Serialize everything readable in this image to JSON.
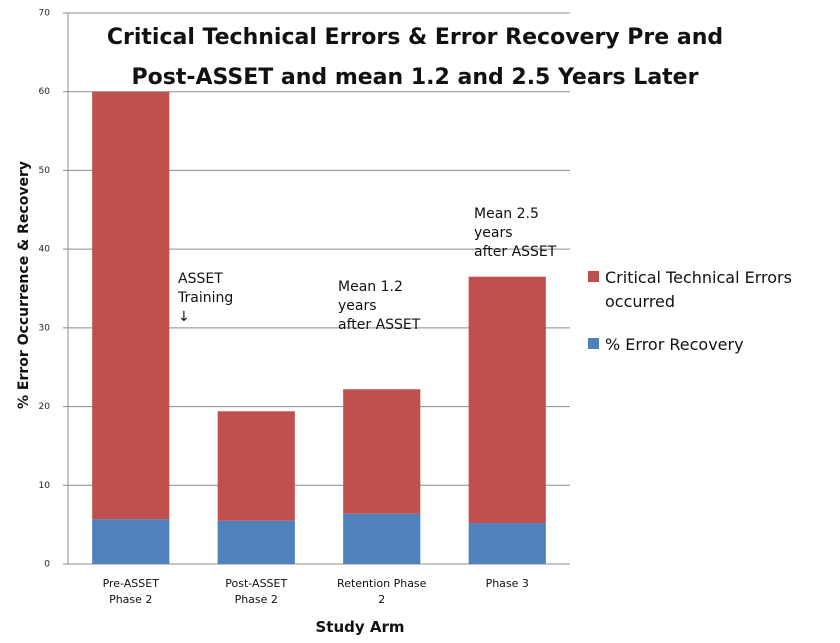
{
  "chart_data": {
    "type": "bar",
    "stacked": true,
    "title": "Critical Technical Errors & Error Recovery Pre and\nPost-ASSET and mean 1.2 and 2.5 Years Later",
    "x_label": "Study Arm",
    "y_label": "% Error Occurrence & Recovery",
    "categories": [
      "Pre-ASSET\nPhase 2",
      "Post-ASSET\nPhase 2",
      "Retention Phase\n2",
      "Phase 3"
    ],
    "series": [
      {
        "name": "Critical Technical Errors\noccurred",
        "color": "#c0504d",
        "values": [
          54.3,
          13.9,
          15.8,
          31.3
        ]
      },
      {
        "name": "% Error Recovery",
        "color": "#4f81bd",
        "values": [
          5.7,
          5.5,
          6.4,
          5.2
        ]
      }
    ],
    "ylim": [
      0,
      70
    ],
    "yticks": [
      0,
      10,
      20,
      30,
      40,
      50,
      60,
      70
    ],
    "grid": true,
    "annotations": [
      "ASSET\nTraining\n↓",
      "Mean 1.2\n years\nafter ASSET",
      "Mean 2.5\n years\nafter ASSET"
    ]
  }
}
